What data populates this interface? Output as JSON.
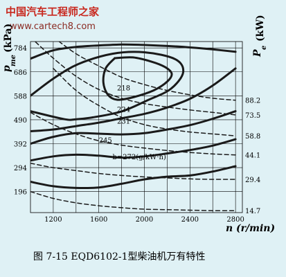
{
  "watermark": {
    "title": "中国汽车工程师之家",
    "url": "www.cartech8.com"
  },
  "caption": "图 7-15   EQD6102-1型柴油机万有特性",
  "chart_data": {
    "type": "line",
    "xlabel": "n (r/min)",
    "ylabel_left": "p_me (kPa)",
    "ylabel_right": "P_e (kW)",
    "xlim": [
      1000,
      2860
    ],
    "ylim": [
      110,
      810
    ],
    "x_ticks": [
      "1200",
      "1600",
      "2000",
      "2400",
      "2800"
    ],
    "y_ticks": [
      "196",
      "294",
      "392",
      "490",
      "588",
      "686",
      "784"
    ],
    "right_ticks": [
      "88.2",
      "73.5",
      "58.8",
      "44.1",
      "29.4",
      "14.7"
    ],
    "grid": true,
    "series": [
      {
        "kind": "full_load",
        "style": "solid",
        "points": [
          [
            1000,
            740
          ],
          [
            1200,
            774
          ],
          [
            1400,
            788
          ],
          [
            1600,
            794
          ],
          [
            1800,
            798
          ],
          [
            2000,
            796
          ],
          [
            2200,
            792
          ],
          [
            2400,
            786
          ],
          [
            2600,
            778
          ],
          [
            2800,
            768
          ]
        ]
      },
      {
        "kind": "bsfc",
        "name": "218",
        "style": "solid",
        "points": [
          [
            1740,
            742
          ],
          [
            1900,
            745
          ],
          [
            2060,
            728
          ],
          [
            2180,
            706
          ],
          [
            2240,
            678
          ],
          [
            2200,
            646
          ],
          [
            2080,
            610
          ],
          [
            1900,
            582
          ],
          [
            1760,
            572
          ],
          [
            1680,
            592
          ],
          [
            1640,
            642
          ],
          [
            1660,
            700
          ],
          [
            1740,
            742
          ]
        ]
      },
      {
        "kind": "bsfc",
        "name": "224",
        "style": "solid",
        "points": [
          [
            1000,
            588
          ],
          [
            1200,
            658
          ],
          [
            1420,
            718
          ],
          [
            1720,
            760
          ],
          [
            2000,
            766
          ],
          [
            2270,
            738
          ],
          [
            2340,
            684
          ],
          [
            2230,
            616
          ],
          [
            2020,
            568
          ],
          [
            1800,
            524
          ],
          [
            1550,
            500
          ],
          [
            1400,
            492
          ],
          [
            1300,
            492
          ],
          [
            1000,
            525
          ]
        ]
      },
      {
        "kind": "bsfc",
        "name": "231",
        "style": "solid",
        "points": [
          [
            1000,
            443
          ],
          [
            1200,
            450
          ],
          [
            1400,
            464
          ],
          [
            1600,
            478
          ],
          [
            1800,
            496
          ],
          [
            2000,
            514
          ],
          [
            2200,
            540
          ],
          [
            2400,
            576
          ],
          [
            2600,
            630
          ],
          [
            2800,
            700
          ]
        ]
      },
      {
        "kind": "bsfc",
        "name": "245",
        "style": "solid",
        "points": [
          [
            1000,
            392
          ],
          [
            1200,
            420
          ],
          [
            1400,
            435
          ],
          [
            1600,
            433
          ],
          [
            1800,
            430
          ],
          [
            2000,
            435
          ],
          [
            2200,
            450
          ],
          [
            2400,
            468
          ],
          [
            2600,
            494
          ],
          [
            2800,
            525
          ]
        ]
      },
      {
        "kind": "bsfc",
        "name": "b=272(g/kW·h)",
        "style": "solid",
        "points": [
          [
            1000,
            323
          ],
          [
            1200,
            340
          ],
          [
            1400,
            347
          ],
          [
            1600,
            343
          ],
          [
            1800,
            335
          ],
          [
            2000,
            340
          ],
          [
            2200,
            352
          ],
          [
            2400,
            366
          ],
          [
            2600,
            384
          ],
          [
            2800,
            410
          ]
        ]
      },
      {
        "kind": "bsfc",
        "name": "",
        "style": "solid",
        "points": [
          [
            1000,
            236
          ],
          [
            1200,
            218
          ],
          [
            1400,
            211
          ],
          [
            1600,
            213
          ],
          [
            1800,
            228
          ],
          [
            2000,
            246
          ],
          [
            2200,
            257
          ],
          [
            2400,
            262
          ],
          [
            2600,
            278
          ],
          [
            2800,
            300
          ]
        ]
      },
      {
        "kind": "power",
        "name": "88.2",
        "style": "dashed",
        "points": [
          [
            1200,
            828
          ],
          [
            1400,
            760
          ],
          [
            1600,
            710
          ],
          [
            1800,
            664
          ],
          [
            2000,
            634
          ],
          [
            2200,
            610
          ],
          [
            2400,
            592
          ],
          [
            2600,
            578
          ],
          [
            2800,
            570
          ]
        ]
      },
      {
        "kind": "power",
        "name": "73.5",
        "style": "dashed",
        "points": [
          [
            1000,
            828
          ],
          [
            1200,
            742
          ],
          [
            1400,
            668
          ],
          [
            1600,
            614
          ],
          [
            1800,
            578
          ],
          [
            2000,
            556
          ],
          [
            2200,
            542
          ],
          [
            2400,
            530
          ],
          [
            2600,
            520
          ],
          [
            2800,
            510
          ]
        ]
      },
      {
        "kind": "power",
        "name": "58.8",
        "style": "dashed",
        "points": [
          [
            1200,
            700
          ],
          [
            1400,
            610
          ],
          [
            1600,
            548
          ],
          [
            1800,
            500
          ],
          [
            2000,
            470
          ],
          [
            2200,
            452
          ],
          [
            2400,
            440
          ],
          [
            2600,
            432
          ],
          [
            2800,
            424
          ]
        ]
      },
      {
        "kind": "power",
        "name": "44.1",
        "style": "dashed",
        "points": [
          [
            1000,
            520
          ],
          [
            1200,
            470
          ],
          [
            1400,
            432
          ],
          [
            1600,
            404
          ],
          [
            1800,
            386
          ],
          [
            2000,
            374
          ],
          [
            2200,
            364
          ],
          [
            2400,
            356
          ],
          [
            2600,
            350
          ],
          [
            2800,
            346
          ]
        ]
      },
      {
        "kind": "power",
        "name": "29.4",
        "style": "dashed",
        "points": [
          [
            1000,
            312
          ],
          [
            1200,
            294
          ],
          [
            1400,
            282
          ],
          [
            1600,
            270
          ],
          [
            1800,
            262
          ],
          [
            2000,
            256
          ],
          [
            2200,
            252
          ],
          [
            2400,
            248
          ],
          [
            2600,
            246
          ],
          [
            2800,
            246
          ]
        ]
      },
      {
        "kind": "power",
        "name": "14.7",
        "style": "dashed",
        "points": [
          [
            1000,
            196
          ],
          [
            1200,
            168
          ],
          [
            1400,
            150
          ],
          [
            1600,
            138
          ],
          [
            1800,
            130
          ],
          [
            2000,
            124
          ],
          [
            2200,
            122
          ],
          [
            2400,
            120
          ],
          [
            2600,
            118
          ],
          [
            2800,
            118
          ]
        ]
      }
    ],
    "annotations": [
      {
        "text": "218",
        "x": 1760,
        "y": 622
      },
      {
        "text": "224",
        "x": 1760,
        "y": 534
      },
      {
        "text": "231",
        "x": 1760,
        "y": 485
      },
      {
        "text": "245",
        "x": 1600,
        "y": 408
      },
      {
        "text": "b=272(g/kW·h)",
        "x": 1720,
        "y": 340
      }
    ]
  }
}
